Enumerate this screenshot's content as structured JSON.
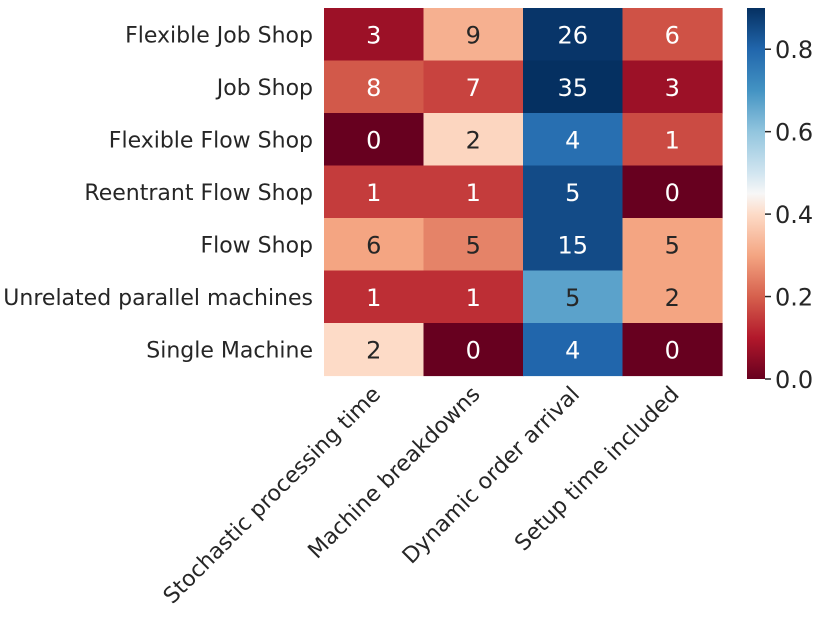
{
  "chart_data": {
    "type": "heatmap",
    "title": "",
    "xlabel": "",
    "ylabel": "",
    "rows": [
      "Flexible Job Shop",
      "Job Shop",
      "Flexible Flow Shop",
      "Reentrant Flow Shop",
      "Flow Shop",
      "Unrelated parallel machines",
      "Single Machine"
    ],
    "columns": [
      "Stochastic processing time",
      "Machine breakdowns",
      "Dynamic order arrival",
      "Setup time included"
    ],
    "values": [
      [
        3,
        9,
        26,
        6
      ],
      [
        8,
        7,
        35,
        3
      ],
      [
        0,
        2,
        4,
        1
      ],
      [
        1,
        1,
        5,
        0
      ],
      [
        6,
        5,
        15,
        5
      ],
      [
        1,
        1,
        5,
        2
      ],
      [
        2,
        0,
        4,
        0
      ]
    ],
    "color_values": [
      [
        0.07,
        0.32,
        0.89,
        0.18
      ],
      [
        0.19,
        0.16,
        0.9,
        0.07
      ],
      [
        0.0,
        0.39,
        0.78,
        0.17
      ],
      [
        0.15,
        0.15,
        0.85,
        0.0
      ],
      [
        0.3,
        0.25,
        0.85,
        0.3
      ],
      [
        0.13,
        0.13,
        0.67,
        0.3
      ],
      [
        0.4,
        0.0,
        0.8,
        0.0
      ]
    ],
    "colorbar": {
      "colormap": "RdBu",
      "range": [
        0.0,
        0.9
      ],
      "ticks": [
        0.0,
        0.2,
        0.4,
        0.6,
        0.8
      ],
      "tick_labels": [
        "0.0",
        "0.2",
        "0.4",
        "0.6",
        "0.8"
      ]
    }
  }
}
